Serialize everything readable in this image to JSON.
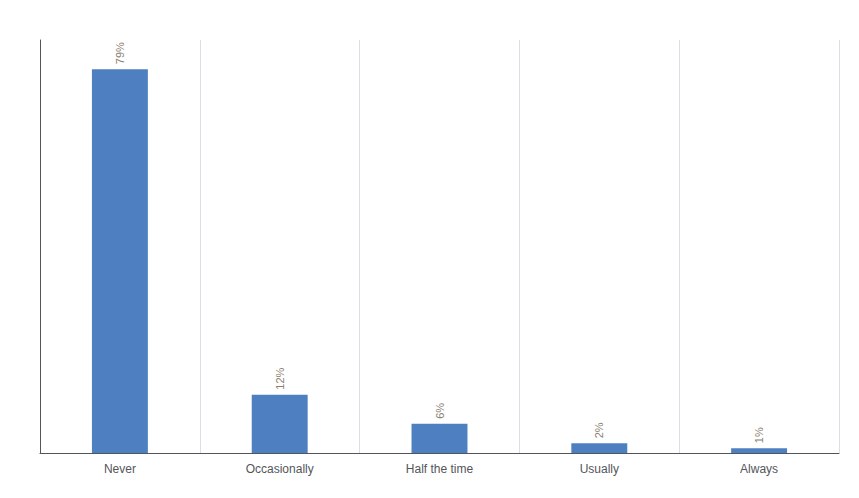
{
  "chart_data": {
    "type": "bar",
    "categories": [
      "Never",
      "Occasionally",
      "Half the time",
      "Usually",
      "Always"
    ],
    "values": [
      79,
      12,
      6,
      2,
      1
    ],
    "value_labels": [
      "79%",
      "12%",
      "6%",
      "2%",
      "1%"
    ],
    "color": "#4e7fc0",
    "ylim": [
      0,
      85
    ],
    "grid": true,
    "data_labels": true,
    "tick_labels": "x"
  }
}
